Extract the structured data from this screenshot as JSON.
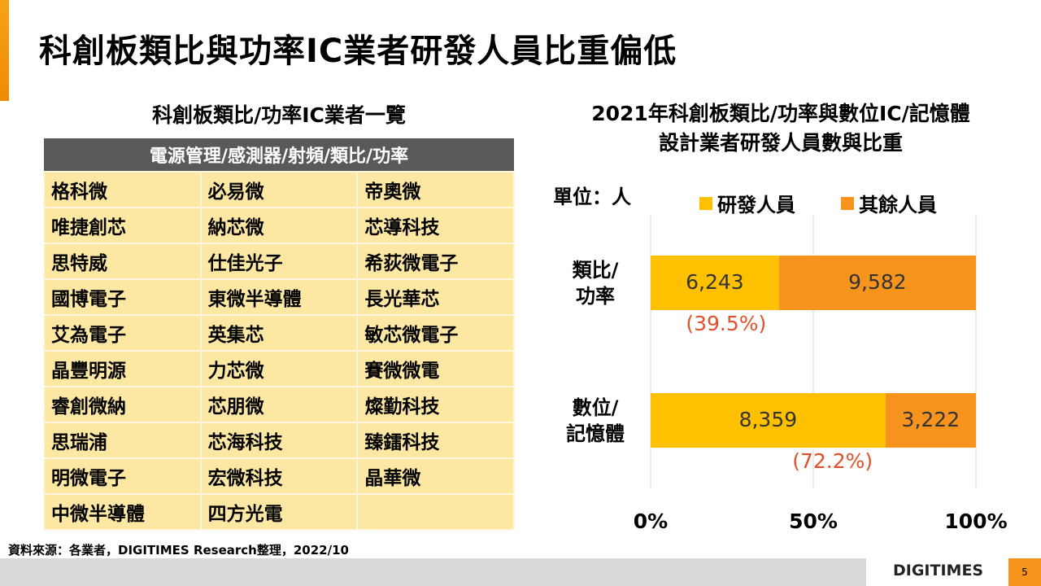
{
  "title": "科創板類比與功率IC業者研發人員比重偏低",
  "table": {
    "subtitle": "科創板類比/功率IC業者一覽",
    "header": "電源管理/感測器/射頻/類比/功率",
    "rows": [
      [
        "格科微",
        "必易微",
        "帝奧微"
      ],
      [
        "唯捷創芯",
        "納芯微",
        "芯導科技"
      ],
      [
        "思特威",
        "仕佳光子",
        "希荻微電子"
      ],
      [
        "國博電子",
        "東微半導體",
        "長光華芯"
      ],
      [
        "艾為電子",
        "英集芯",
        "敏芯微電子"
      ],
      [
        "晶豐明源",
        "力芯微",
        "賽微微電"
      ],
      [
        "睿創微納",
        "芯朋微",
        "燦勤科技"
      ],
      [
        "思瑞浦",
        "芯海科技",
        "臻鐳科技"
      ],
      [
        "明微電子",
        "宏微科技",
        "晶華微"
      ],
      [
        "中微半導體",
        "四方光電",
        ""
      ]
    ]
  },
  "chart_data": {
    "type": "bar",
    "stacked": "percent",
    "title_line1": "2021年科創板類比/功率與數位IC/記憶體",
    "title_line2": "設計業者研發人員數與比重",
    "unit": "單位：人",
    "categories": [
      [
        "類比/",
        "功率"
      ],
      [
        "數位/",
        "記憶體"
      ]
    ],
    "series": [
      {
        "name": "研發人員",
        "color": "#ffc000",
        "values": [
          6243,
          8359
        ],
        "labels": [
          "6,243",
          "8,359"
        ]
      },
      {
        "name": "其餘人員",
        "color": "#f7941d",
        "values": [
          9582,
          3222
        ],
        "labels": [
          "9,582",
          "3,222"
        ]
      }
    ],
    "share_labels": [
      "(39.5%)",
      "(72.2%)"
    ],
    "xticks": [
      "0%",
      "50%",
      "100%"
    ],
    "xlim": [
      0,
      100
    ],
    "share_color": "#e0502a"
  },
  "source": "資料來源：各業者，DIGITIMES Research整理，2022/10",
  "footer": {
    "logo": "DIGITIMES",
    "page": "5"
  }
}
